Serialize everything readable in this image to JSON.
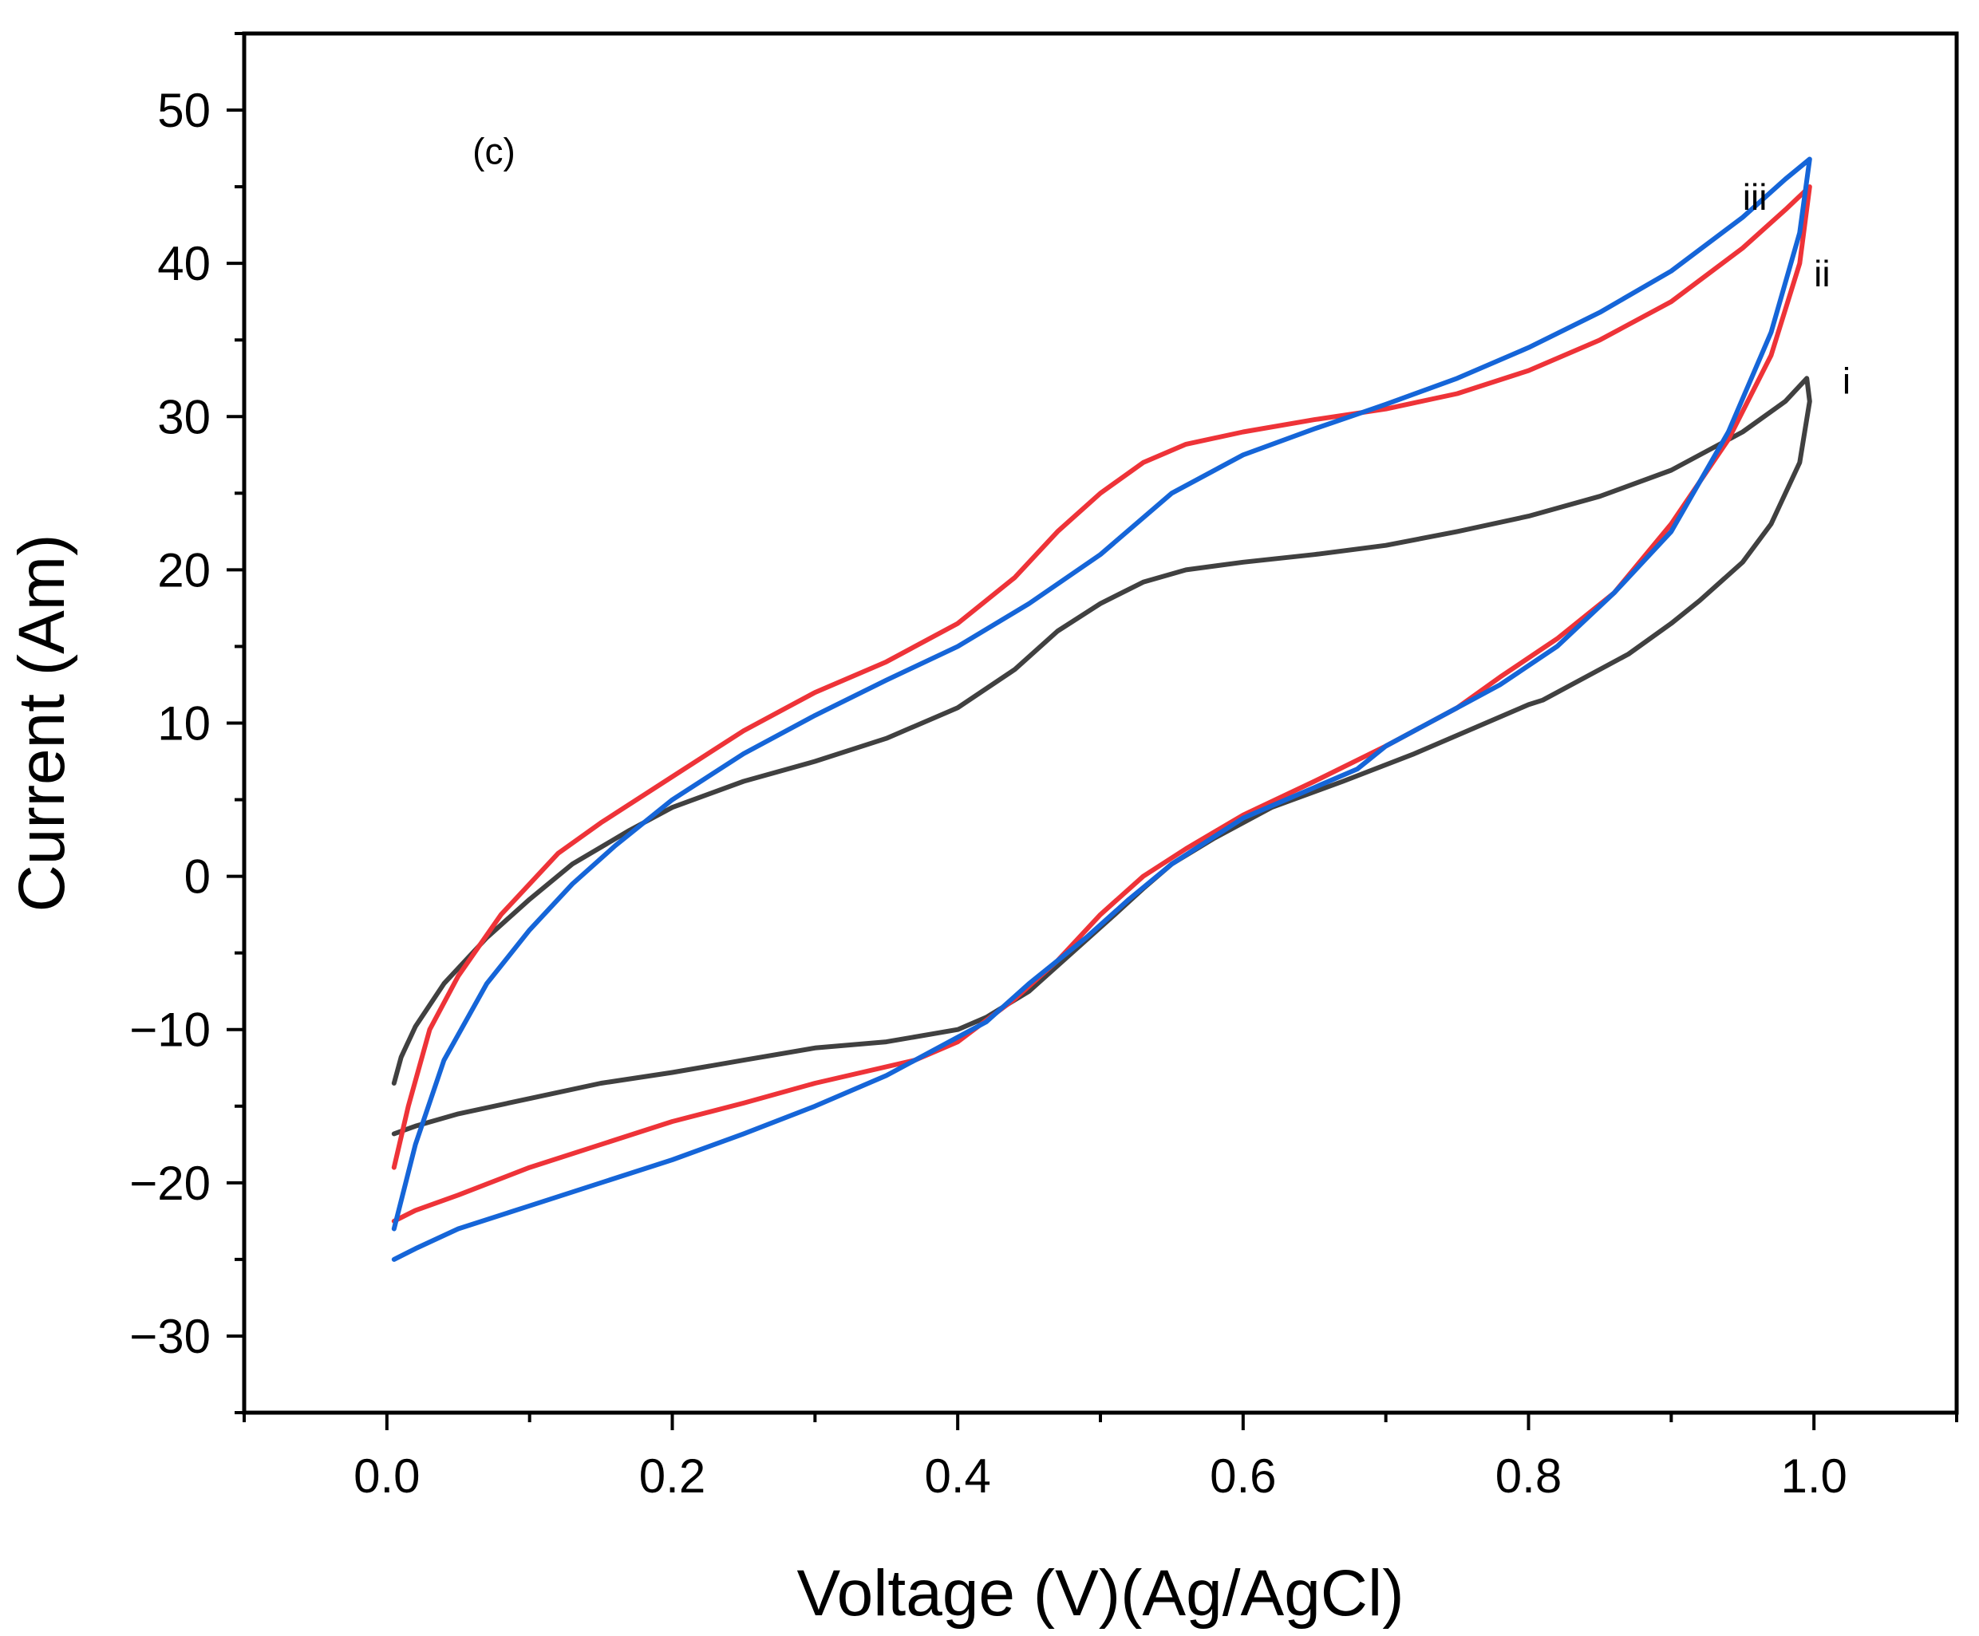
{
  "chart_data": {
    "type": "line",
    "title": "",
    "panel_label": "(c)",
    "xlabel": "Voltage (V)(Ag/AgCl)",
    "ylabel": "Current (Am)",
    "xlim": [
      -0.1,
      1.1
    ],
    "ylim": [
      -35,
      55
    ],
    "xticks": [
      0.0,
      0.2,
      0.4,
      0.6,
      0.8,
      1.0
    ],
    "xtick_labels": [
      "0.0",
      "0.2",
      "0.4",
      "0.6",
      "0.8",
      "1.0"
    ],
    "x_minor_step": 0.1,
    "yticks": [
      -30,
      -20,
      -10,
      0,
      10,
      20,
      30,
      40,
      50
    ],
    "ytick_labels": [
      "−30",
      "−20",
      "−10",
      "0",
      "10",
      "20",
      "30",
      "40",
      "50"
    ],
    "y_minor_step": 5,
    "grid": false,
    "series": [
      {
        "name": "i",
        "color": "#404040",
        "points": [
          [
            0.005,
            -13.5
          ],
          [
            0.01,
            -11.8
          ],
          [
            0.02,
            -9.8
          ],
          [
            0.04,
            -7.0
          ],
          [
            0.07,
            -4.0
          ],
          [
            0.1,
            -1.5
          ],
          [
            0.13,
            0.8
          ],
          [
            0.17,
            3.0
          ],
          [
            0.2,
            4.5
          ],
          [
            0.25,
            6.2
          ],
          [
            0.3,
            7.5
          ],
          [
            0.35,
            9.0
          ],
          [
            0.4,
            11.0
          ],
          [
            0.44,
            13.5
          ],
          [
            0.47,
            16.0
          ],
          [
            0.5,
            17.8
          ],
          [
            0.53,
            19.2
          ],
          [
            0.56,
            20.0
          ],
          [
            0.6,
            20.5
          ],
          [
            0.65,
            21.0
          ],
          [
            0.7,
            21.6
          ],
          [
            0.75,
            22.5
          ],
          [
            0.8,
            23.5
          ],
          [
            0.85,
            24.8
          ],
          [
            0.9,
            26.5
          ],
          [
            0.95,
            29.0
          ],
          [
            0.98,
            31.0
          ],
          [
            0.995,
            32.5
          ],
          [
            0.997,
            31.0
          ],
          [
            0.99,
            27.0
          ],
          [
            0.97,
            23.0
          ],
          [
            0.95,
            20.5
          ],
          [
            0.92,
            18.0
          ],
          [
            0.9,
            16.5
          ],
          [
            0.87,
            14.5
          ],
          [
            0.84,
            13.0
          ],
          [
            0.81,
            11.5
          ],
          [
            0.8,
            11.2
          ],
          [
            0.77,
            10.0
          ],
          [
            0.72,
            8.0
          ],
          [
            0.67,
            6.2
          ],
          [
            0.62,
            4.5
          ],
          [
            0.58,
            2.5
          ],
          [
            0.55,
            0.8
          ],
          [
            0.53,
            -0.8
          ],
          [
            0.51,
            -2.5
          ],
          [
            0.48,
            -5.0
          ],
          [
            0.45,
            -7.5
          ],
          [
            0.42,
            -9.2
          ],
          [
            0.4,
            -10.0
          ],
          [
            0.35,
            -10.8
          ],
          [
            0.3,
            -11.2
          ],
          [
            0.25,
            -12.0
          ],
          [
            0.2,
            -12.8
          ],
          [
            0.15,
            -13.5
          ],
          [
            0.1,
            -14.5
          ],
          [
            0.05,
            -15.5
          ],
          [
            0.02,
            -16.3
          ],
          [
            0.005,
            -16.8
          ]
        ]
      },
      {
        "name": "ii",
        "color": "#ee3338",
        "points": [
          [
            0.005,
            -19.0
          ],
          [
            0.015,
            -15.0
          ],
          [
            0.03,
            -10.0
          ],
          [
            0.05,
            -6.5
          ],
          [
            0.08,
            -2.5
          ],
          [
            0.1,
            -0.5
          ],
          [
            0.12,
            1.5
          ],
          [
            0.15,
            3.5
          ],
          [
            0.2,
            6.5
          ],
          [
            0.25,
            9.5
          ],
          [
            0.3,
            12.0
          ],
          [
            0.35,
            14.0
          ],
          [
            0.4,
            16.5
          ],
          [
            0.44,
            19.5
          ],
          [
            0.47,
            22.5
          ],
          [
            0.5,
            25.0
          ],
          [
            0.53,
            27.0
          ],
          [
            0.56,
            28.2
          ],
          [
            0.6,
            29.0
          ],
          [
            0.65,
            29.8
          ],
          [
            0.7,
            30.5
          ],
          [
            0.75,
            31.5
          ],
          [
            0.8,
            33.0
          ],
          [
            0.85,
            35.0
          ],
          [
            0.9,
            37.5
          ],
          [
            0.95,
            41.0
          ],
          [
            0.98,
            43.5
          ],
          [
            0.997,
            45.0
          ],
          [
            0.99,
            40.0
          ],
          [
            0.97,
            34.0
          ],
          [
            0.94,
            28.5
          ],
          [
            0.9,
            23.0
          ],
          [
            0.86,
            18.5
          ],
          [
            0.82,
            15.5
          ],
          [
            0.78,
            13.0
          ],
          [
            0.75,
            11.0
          ],
          [
            0.7,
            8.5
          ],
          [
            0.65,
            6.2
          ],
          [
            0.6,
            4.0
          ],
          [
            0.56,
            1.8
          ],
          [
            0.53,
            0.0
          ],
          [
            0.5,
            -2.5
          ],
          [
            0.47,
            -5.5
          ],
          [
            0.44,
            -8.0
          ],
          [
            0.4,
            -10.8
          ],
          [
            0.37,
            -12.0
          ],
          [
            0.3,
            -13.5
          ],
          [
            0.25,
            -14.8
          ],
          [
            0.2,
            -16.0
          ],
          [
            0.15,
            -17.5
          ],
          [
            0.1,
            -19.0
          ],
          [
            0.05,
            -20.8
          ],
          [
            0.02,
            -21.8
          ],
          [
            0.005,
            -22.5
          ]
        ]
      },
      {
        "name": "iii",
        "color": "#1565d8",
        "points": [
          [
            0.005,
            -23.0
          ],
          [
            0.02,
            -17.5
          ],
          [
            0.04,
            -12.0
          ],
          [
            0.07,
            -7.0
          ],
          [
            0.1,
            -3.5
          ],
          [
            0.13,
            -0.5
          ],
          [
            0.16,
            2.0
          ],
          [
            0.2,
            5.0
          ],
          [
            0.25,
            8.0
          ],
          [
            0.3,
            10.5
          ],
          [
            0.35,
            12.8
          ],
          [
            0.4,
            15.0
          ],
          [
            0.45,
            17.8
          ],
          [
            0.5,
            21.0
          ],
          [
            0.55,
            25.0
          ],
          [
            0.6,
            27.5
          ],
          [
            0.65,
            29.2
          ],
          [
            0.7,
            30.8
          ],
          [
            0.75,
            32.5
          ],
          [
            0.8,
            34.5
          ],
          [
            0.85,
            36.8
          ],
          [
            0.9,
            39.5
          ],
          [
            0.95,
            43.0
          ],
          [
            0.98,
            45.5
          ],
          [
            0.997,
            46.8
          ],
          [
            0.99,
            42.0
          ],
          [
            0.97,
            35.5
          ],
          [
            0.94,
            29.0
          ],
          [
            0.9,
            22.5
          ],
          [
            0.86,
            18.5
          ],
          [
            0.82,
            15.0
          ],
          [
            0.78,
            12.5
          ],
          [
            0.75,
            11.0
          ],
          [
            0.7,
            8.5
          ],
          [
            0.68,
            7.0
          ],
          [
            0.65,
            5.8
          ],
          [
            0.6,
            3.8
          ],
          [
            0.55,
            0.8
          ],
          [
            0.52,
            -1.5
          ],
          [
            0.49,
            -4.0
          ],
          [
            0.45,
            -7.0
          ],
          [
            0.42,
            -9.5
          ],
          [
            0.4,
            -10.5
          ],
          [
            0.35,
            -13.0
          ],
          [
            0.3,
            -15.0
          ],
          [
            0.25,
            -16.8
          ],
          [
            0.2,
            -18.5
          ],
          [
            0.15,
            -20.0
          ],
          [
            0.1,
            -21.5
          ],
          [
            0.05,
            -23.0
          ],
          [
            0.02,
            -24.3
          ],
          [
            0.005,
            -25.0
          ]
        ]
      }
    ],
    "annotations": [
      {
        "text": "(c)",
        "x": 0.06,
        "y": 46.5
      },
      {
        "text": "iii",
        "x": 0.95,
        "y": 43.5
      },
      {
        "text": "ii",
        "x": 1.0,
        "y": 38.5
      },
      {
        "text": "i",
        "x": 1.02,
        "y": 31.5
      }
    ]
  }
}
